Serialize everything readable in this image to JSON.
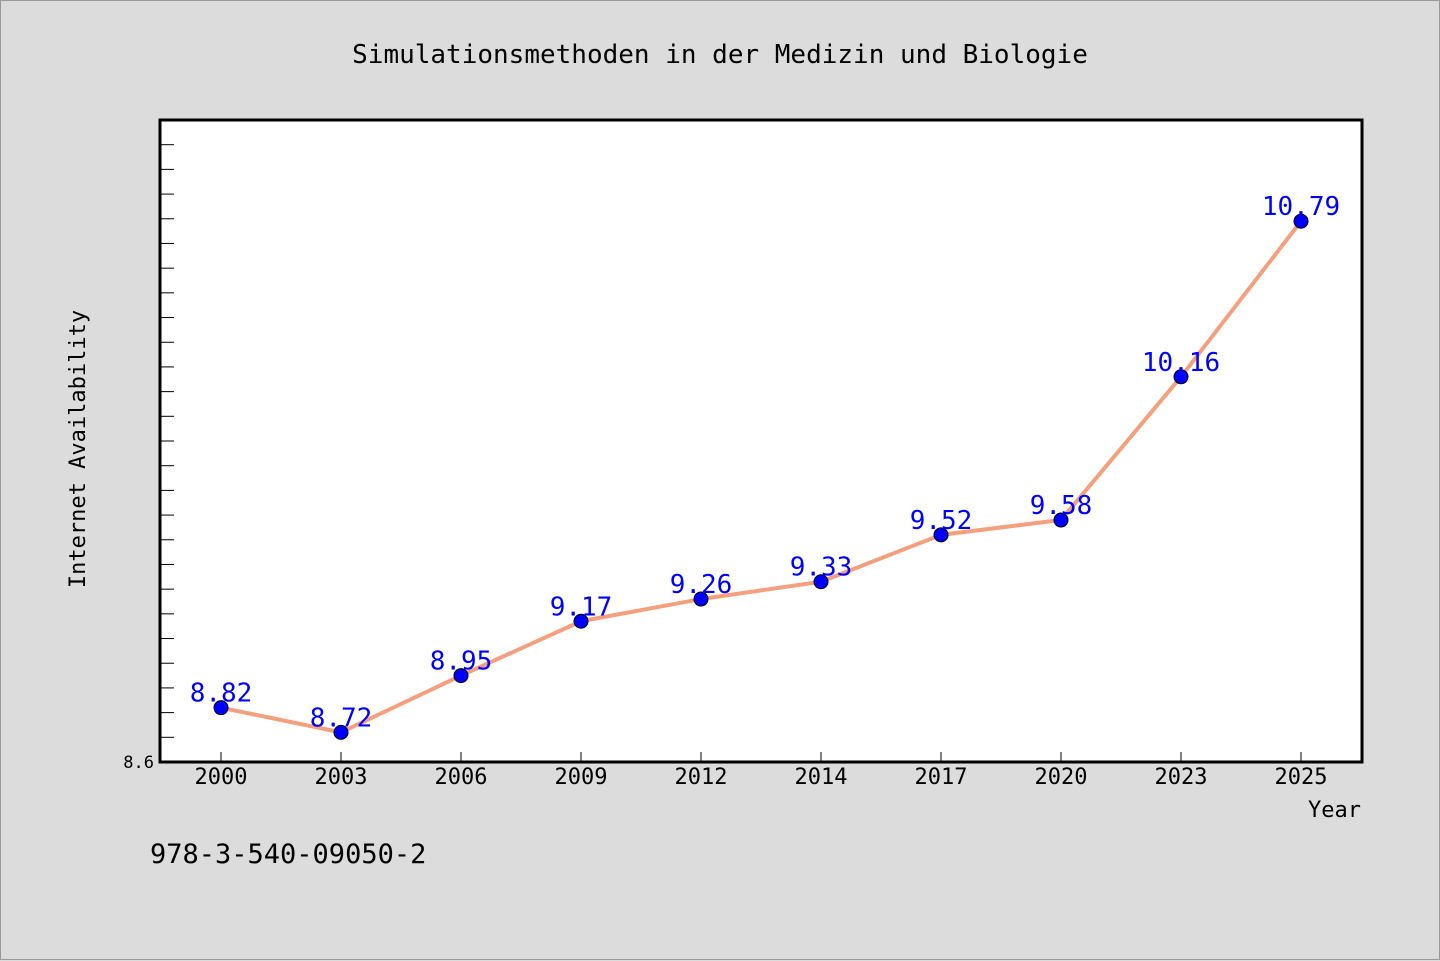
{
  "chart_data": {
    "type": "line",
    "title": "Simulationsmethoden in der Medizin und Biologie",
    "xlabel": "Year",
    "ylabel": "Internet Availability",
    "categories": [
      "2000",
      "2003",
      "2006",
      "2009",
      "2012",
      "2014",
      "2017",
      "2020",
      "2023",
      "2025"
    ],
    "series": [
      {
        "values": [
          8.82,
          8.72,
          8.95,
          9.17,
          9.26,
          9.33,
          9.52,
          9.58,
          10.16,
          10.79
        ]
      }
    ],
    "ylim": [
      8.6,
      11.2
    ],
    "y_tick_labels": [
      "8.6"
    ],
    "line_color": "#f4a07e",
    "marker_color": "#0000ff",
    "label_color": "#0000ff",
    "grid": false,
    "legend": "none"
  },
  "footnote": "978-3-540-09050-2"
}
